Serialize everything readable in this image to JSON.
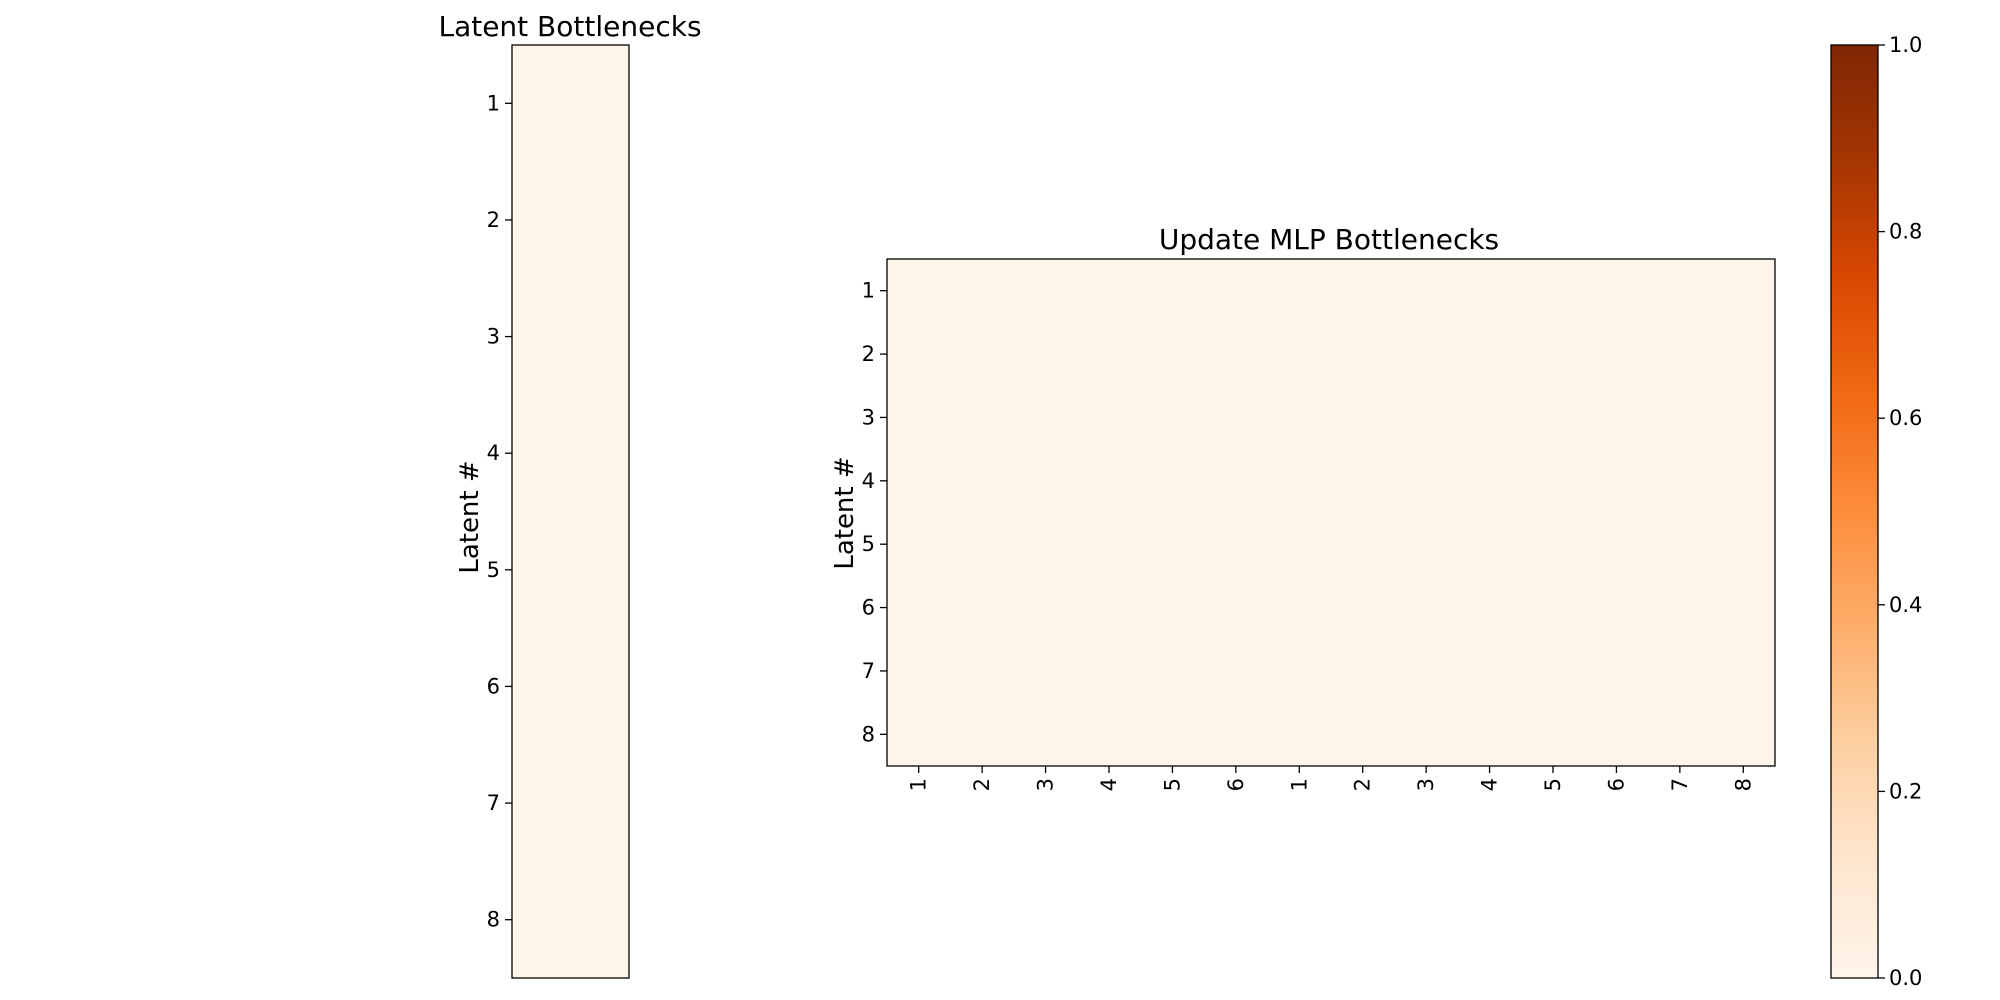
{
  "chart_data": [
    {
      "type": "heatmap",
      "title": "Latent Bottlenecks",
      "ylabel": "Latent #",
      "xlabel": "",
      "y_ticks": [
        "1",
        "2",
        "3",
        "4",
        "5",
        "6",
        "7",
        "8"
      ],
      "x_ticks": [],
      "values": [
        [
          0.0
        ],
        [
          0.0
        ],
        [
          0.0
        ],
        [
          0.0
        ],
        [
          0.0
        ],
        [
          0.0
        ],
        [
          0.0
        ],
        [
          0.0
        ]
      ],
      "vmin": 0.0,
      "vmax": 1.0,
      "colormap": "Oranges"
    },
    {
      "type": "heatmap",
      "title": "Update MLP Bottlenecks",
      "ylabel": "Latent #",
      "xlabel": "",
      "y_ticks": [
        "1",
        "2",
        "3",
        "4",
        "5",
        "6",
        "7",
        "8"
      ],
      "x_ticks": [
        "1",
        "2",
        "3",
        "4",
        "5",
        "6",
        "1",
        "2",
        "3",
        "4",
        "5",
        "6",
        "7",
        "8"
      ],
      "values": [
        [
          0,
          0,
          0,
          0,
          0,
          0,
          0,
          0,
          0,
          0,
          0,
          0,
          0,
          0
        ],
        [
          0,
          0,
          0,
          0,
          0,
          0,
          0,
          0,
          0,
          0,
          0,
          0,
          0,
          0
        ],
        [
          0,
          0,
          0,
          0,
          0,
          0,
          0,
          0,
          0,
          0,
          0,
          0,
          0,
          0
        ],
        [
          0,
          0,
          0,
          0,
          0,
          0,
          0,
          0,
          0,
          0,
          0,
          0,
          0,
          0
        ],
        [
          0,
          0,
          0,
          0,
          0,
          0,
          0,
          0,
          0,
          0,
          0,
          0,
          0,
          0
        ],
        [
          0,
          0,
          0,
          0,
          0,
          0,
          0,
          0,
          0,
          0,
          0,
          0,
          0,
          0
        ],
        [
          0,
          0,
          0,
          0,
          0,
          0,
          0,
          0,
          0,
          0,
          0,
          0,
          0,
          0
        ],
        [
          0,
          0,
          0,
          0,
          0,
          0,
          0,
          0,
          0,
          0,
          0,
          0,
          0,
          0
        ]
      ],
      "vmin": 0.0,
      "vmax": 1.0,
      "colormap": "Oranges"
    }
  ],
  "colorbar": {
    "range": [
      0.0,
      1.0
    ],
    "ticks": [
      "0.0",
      "0.2",
      "0.4",
      "0.6",
      "0.8",
      "1.0"
    ],
    "colors": [
      "#fff5eb",
      "#fee6ce",
      "#fdd0a2",
      "#fdae6b",
      "#fd8d3c",
      "#f16913",
      "#d94801",
      "#a63603",
      "#7f2704"
    ]
  }
}
